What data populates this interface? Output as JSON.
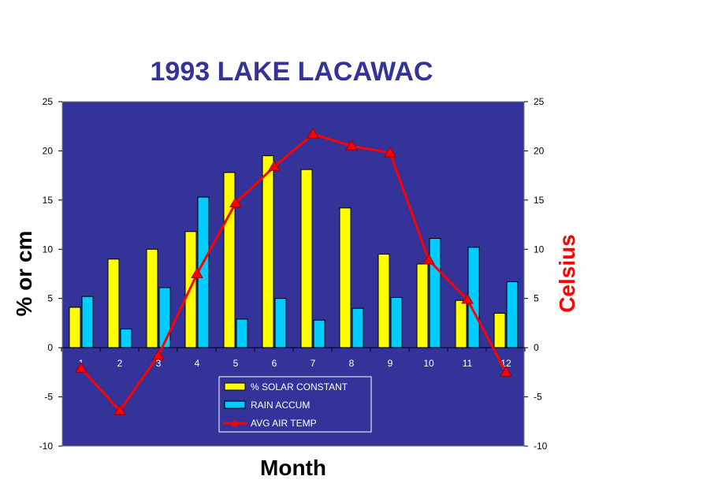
{
  "chart_data": {
    "type": "bar",
    "title": "1993 LAKE LACAWAC",
    "xlabel": "Month",
    "ylabel": "% or cm",
    "y2label": "Celsius",
    "categories": [
      "1",
      "2",
      "3",
      "4",
      "5",
      "6",
      "7",
      "8",
      "9",
      "10",
      "11",
      "12"
    ],
    "ylim": [
      -10,
      25
    ],
    "y2lim": [
      -10,
      25
    ],
    "yticks": [
      -10,
      -5,
      0,
      5,
      10,
      15,
      20,
      25
    ],
    "grid": false,
    "legend_position": "bottom-center",
    "series": [
      {
        "name": "% SOLAR CONSTANT",
        "kind": "bar",
        "axis": "left",
        "color": "#ffff00",
        "values": [
          4.1,
          9.0,
          10.0,
          11.8,
          17.8,
          19.5,
          18.1,
          14.2,
          9.5,
          8.5,
          4.8,
          3.5
        ]
      },
      {
        "name": "RAIN ACCUM",
        "kind": "bar",
        "axis": "left",
        "color": "#00ccff",
        "values": [
          5.2,
          1.9,
          6.1,
          15.3,
          2.9,
          5.0,
          2.8,
          4.0,
          5.1,
          11.1,
          10.2,
          6.7
        ]
      },
      {
        "name": "AVG  AIR  TEMP",
        "kind": "line",
        "axis": "right",
        "color": "#ff0000",
        "values": [
          -2.1,
          -6.4,
          -0.8,
          7.5,
          14.7,
          18.4,
          21.7,
          20.5,
          19.8,
          8.9,
          4.9,
          -2.5
        ]
      }
    ],
    "colors": {
      "plot_background": "#333399",
      "title": "#333399",
      "y2label": "#ff0000"
    }
  }
}
